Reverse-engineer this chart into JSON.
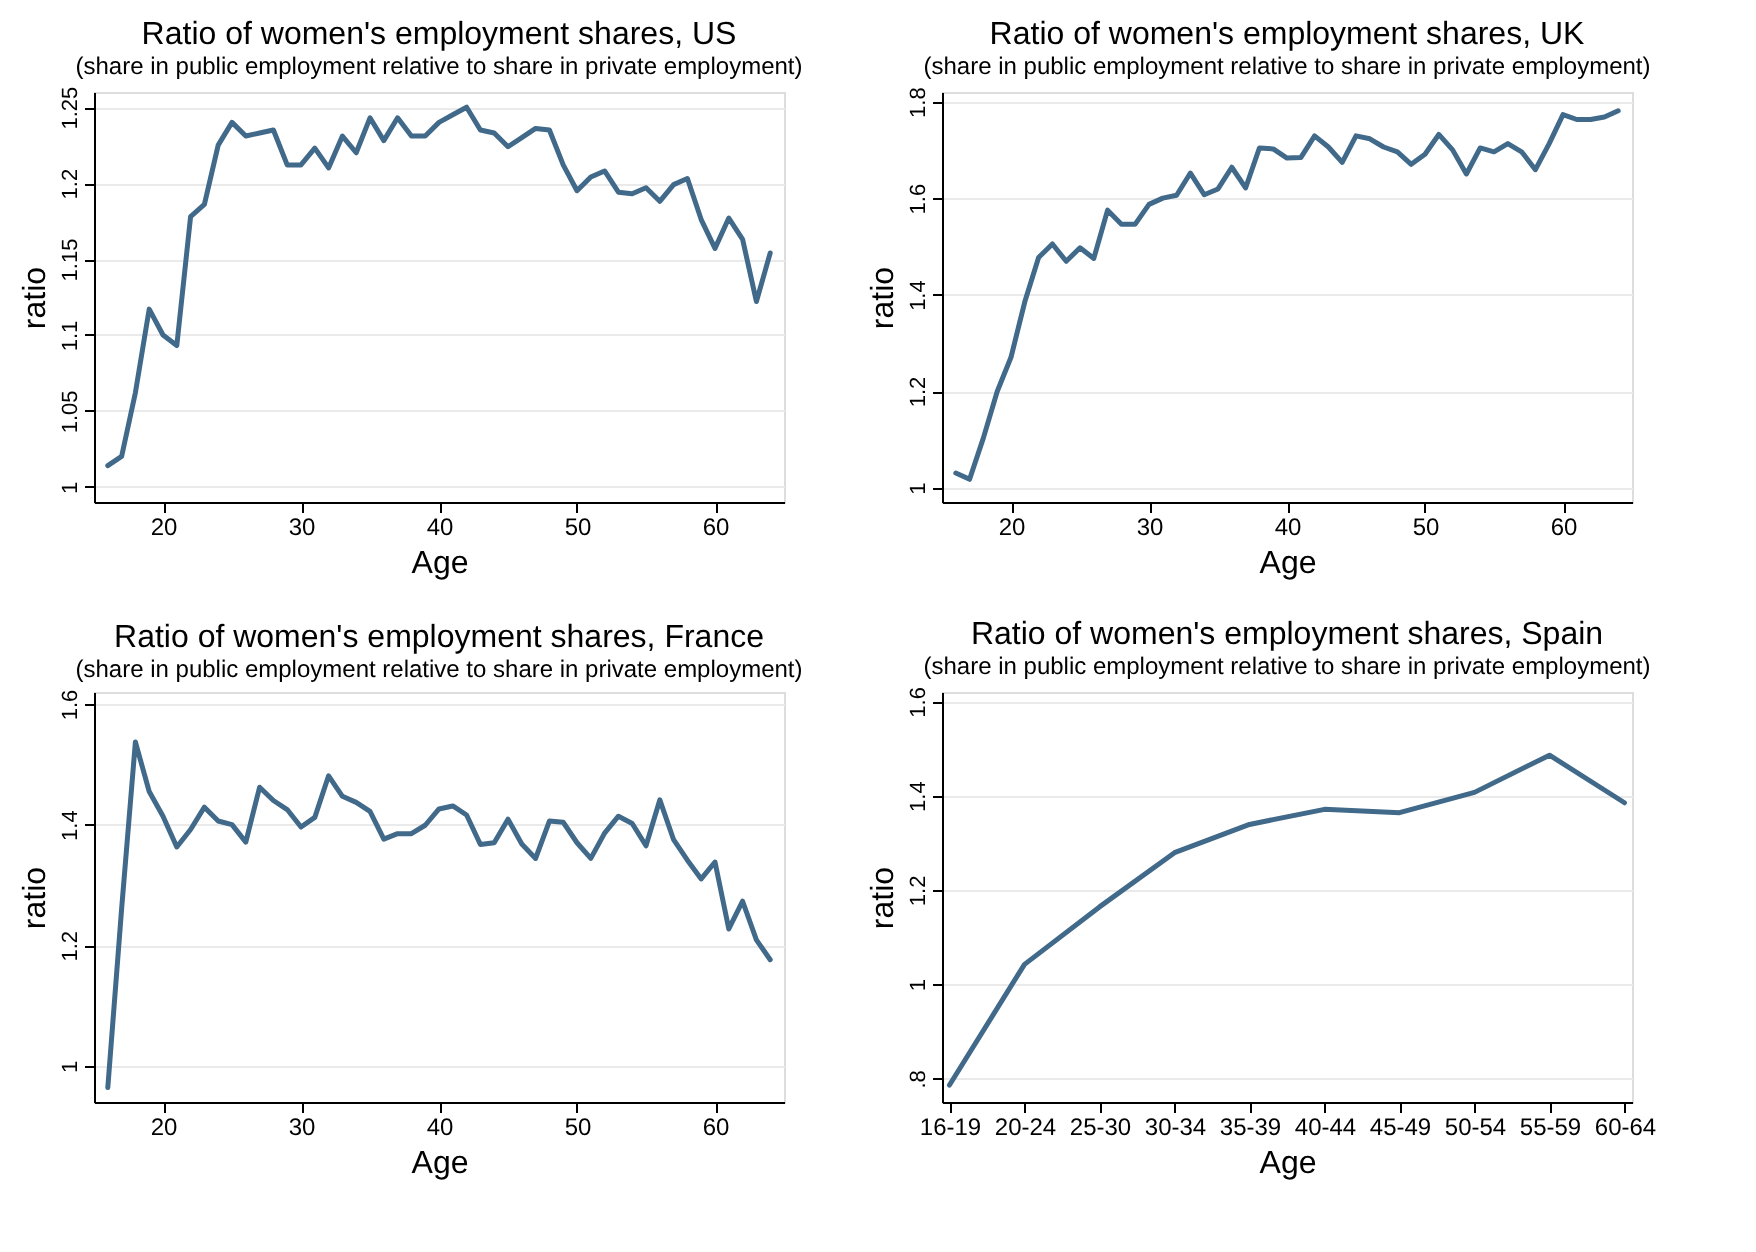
{
  "chart_data": [
    {
      "type": "line",
      "title": "Ratio of women's  employment shares, US",
      "subtitle": "(share in public employment relative to share in private employment)",
      "xlabel": "Age",
      "ylabel": "ratio",
      "x": [
        16,
        17,
        18,
        19,
        20,
        21,
        22,
        23,
        24,
        25,
        26,
        27,
        28,
        29,
        30,
        31,
        32,
        33,
        34,
        35,
        36,
        37,
        38,
        39,
        40,
        41,
        42,
        43,
        44,
        45,
        46,
        47,
        48,
        49,
        50,
        51,
        52,
        53,
        54,
        55,
        56,
        57,
        58,
        59,
        60,
        61,
        62,
        63,
        64
      ],
      "series": [
        {
          "color": "#41698a",
          "values": [
            1.014,
            1.02,
            1.062,
            1.117,
            1.1,
            1.093,
            1.178,
            1.186,
            1.225,
            1.24,
            1.231,
            1.233,
            1.235,
            1.212,
            1.212,
            1.223,
            1.21,
            1.231,
            1.22,
            1.243,
            1.228,
            1.243,
            1.231,
            1.231,
            1.24,
            1.245,
            1.25,
            1.235,
            1.233,
            1.224,
            1.23,
            1.236,
            1.235,
            1.212,
            1.195,
            1.204,
            1.208,
            1.194,
            1.193,
            1.197,
            1.188,
            1.199,
            1.203,
            1.176,
            1.157,
            1.177,
            1.163,
            1.122,
            1.154
          ]
        }
      ],
      "xlim": [
        15,
        65
      ],
      "ylim": [
        0.99,
        1.26
      ],
      "xticks": [
        20,
        30,
        40,
        50,
        60
      ],
      "yticks": [
        1,
        1.05,
        1.1,
        1.15,
        1.2,
        1.25
      ],
      "grid": "y",
      "marker": "none",
      "line_style": "solid"
    },
    {
      "type": "line",
      "title": "Ratio of women's employment shares, UK",
      "subtitle": "(share in public employment relative to share in private employment)",
      "xlabel": "Age",
      "ylabel": "ratio",
      "x": [
        16,
        17,
        18,
        19,
        20,
        21,
        22,
        23,
        24,
        25,
        26,
        27,
        28,
        29,
        30,
        31,
        32,
        33,
        34,
        35,
        36,
        37,
        38,
        39,
        40,
        41,
        42,
        43,
        44,
        45,
        46,
        47,
        48,
        49,
        50,
        51,
        52,
        53,
        54,
        55,
        56,
        57,
        58,
        59,
        60,
        61,
        62,
        63,
        64
      ],
      "series": [
        {
          "color": "#41698a",
          "values": [
            1.03,
            1.017,
            1.103,
            1.199,
            1.27,
            1.385,
            1.477,
            1.505,
            1.469,
            1.497,
            1.475,
            1.575,
            1.546,
            1.546,
            1.587,
            1.6,
            1.606,
            1.652,
            1.607,
            1.619,
            1.664,
            1.621,
            1.704,
            1.702,
            1.683,
            1.684,
            1.729,
            1.706,
            1.674,
            1.729,
            1.723,
            1.706,
            1.696,
            1.67,
            1.691,
            1.732,
            1.7,
            1.65,
            1.704,
            1.696,
            1.713,
            1.696,
            1.659,
            1.713,
            1.773,
            1.763,
            1.763,
            1.768,
            1.781
          ]
        }
      ],
      "xlim": [
        15,
        65
      ],
      "ylim": [
        0.97,
        1.82
      ],
      "xticks": [
        20,
        30,
        40,
        50,
        60
      ],
      "yticks": [
        1,
        1.2,
        1.4,
        1.6,
        1.8
      ],
      "grid": "y",
      "marker": "none",
      "line_style": "solid"
    },
    {
      "type": "line",
      "title": "Ratio of women's employment shares, France",
      "subtitle": "(share in public employment relative to share in private employment)",
      "xlabel": "Age",
      "ylabel": "ratio",
      "x": [
        16,
        17,
        18,
        19,
        20,
        21,
        22,
        23,
        24,
        25,
        26,
        27,
        28,
        29,
        30,
        31,
        32,
        33,
        34,
        35,
        36,
        37,
        38,
        39,
        40,
        41,
        42,
        43,
        44,
        45,
        46,
        47,
        48,
        49,
        50,
        51,
        52,
        53,
        54,
        55,
        56,
        57,
        58,
        59,
        60,
        61,
        62,
        63,
        64
      ],
      "series": [
        {
          "color": "#41698a",
          "values": [
            0.964,
            1.26,
            1.537,
            1.455,
            1.414,
            1.363,
            1.392,
            1.429,
            1.406,
            1.4,
            1.371,
            1.462,
            1.44,
            1.425,
            1.396,
            1.412,
            1.481,
            1.447,
            1.437,
            1.422,
            1.376,
            1.385,
            1.385,
            1.399,
            1.426,
            1.431,
            1.416,
            1.367,
            1.37,
            1.409,
            1.368,
            1.344,
            1.406,
            1.404,
            1.37,
            1.344,
            1.386,
            1.414,
            1.402,
            1.365,
            1.441,
            1.375,
            1.341,
            1.31,
            1.338,
            1.227,
            1.273,
            1.209,
            1.176
          ]
        }
      ],
      "xlim": [
        15,
        65
      ],
      "ylim": [
        0.94,
        1.62
      ],
      "xticks": [
        20,
        30,
        40,
        50,
        60
      ],
      "yticks": [
        1,
        1.2,
        1.4,
        1.6
      ],
      "grid": "y",
      "marker": "none",
      "line_style": "solid"
    },
    {
      "type": "line",
      "title": "Ratio of women's employment shares, Spain",
      "subtitle": "(share in public employment relative to share in private employment)",
      "xlabel": "Age",
      "ylabel": "ratio",
      "categories": [
        "16-19",
        "20-24",
        "25-30",
        "30-34",
        "35-39",
        "40-44",
        "45-49",
        "50-54",
        "55-59",
        "60-64"
      ],
      "series": [
        {
          "color": "#41698a",
          "values": [
            0.786,
            1.042,
            1.164,
            1.279,
            1.339,
            1.371,
            1.364,
            1.407,
            1.486,
            1.385
          ]
        }
      ],
      "ylim": [
        0.75,
        1.62
      ],
      "yticks": [
        {
          "value": 0.8,
          "label": ".8"
        },
        1,
        1.2,
        1.4,
        1.6
      ],
      "grid": "y",
      "marker": "none",
      "line_style": "solid"
    }
  ]
}
